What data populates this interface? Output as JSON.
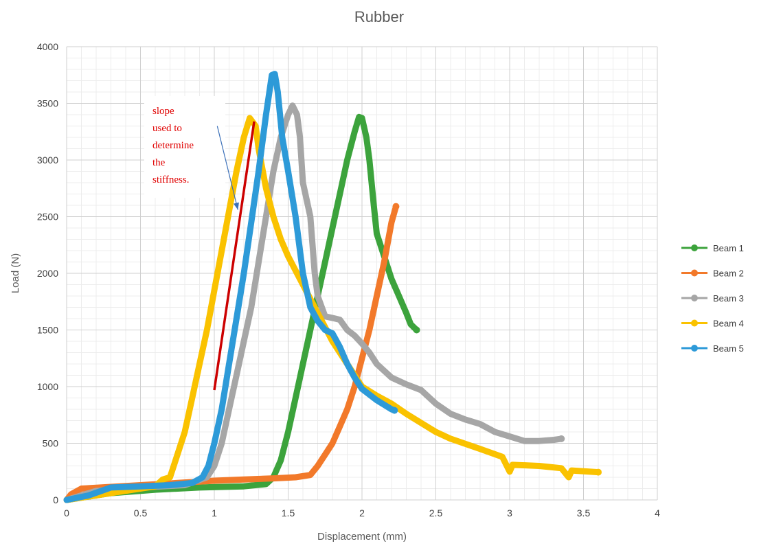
{
  "chart_data": {
    "type": "line",
    "title": "Rubber",
    "xlabel": "Displacement (mm)",
    "ylabel": "Load (N)",
    "xlim": [
      0,
      4
    ],
    "ylim": [
      0,
      4000
    ],
    "x_ticks": [
      "0",
      "0.5",
      "1",
      "1.5",
      "2",
      "2.5",
      "3",
      "3.5",
      "4"
    ],
    "y_ticks": [
      "0",
      "500",
      "1000",
      "1500",
      "2000",
      "2500",
      "3000",
      "3500",
      "4000"
    ],
    "grid": true,
    "minor_grid": true,
    "legend_position": "right",
    "series": [
      {
        "name": "Beam 1",
        "color": "#3ca33c",
        "points": [
          [
            0,
            0
          ],
          [
            0.3,
            60
          ],
          [
            0.6,
            90
          ],
          [
            0.9,
            110
          ],
          [
            1.2,
            120
          ],
          [
            1.35,
            140
          ],
          [
            1.4,
            200
          ],
          [
            1.45,
            350
          ],
          [
            1.5,
            600
          ],
          [
            1.55,
            900
          ],
          [
            1.6,
            1200
          ],
          [
            1.65,
            1500
          ],
          [
            1.7,
            1800
          ],
          [
            1.75,
            2100
          ],
          [
            1.8,
            2400
          ],
          [
            1.85,
            2700
          ],
          [
            1.9,
            3000
          ],
          [
            1.95,
            3250
          ],
          [
            1.98,
            3380
          ],
          [
            2.0,
            3370
          ],
          [
            2.03,
            3200
          ],
          [
            2.05,
            3000
          ],
          [
            2.08,
            2600
          ],
          [
            2.1,
            2350
          ],
          [
            2.15,
            2150
          ],
          [
            2.2,
            1950
          ],
          [
            2.25,
            1800
          ],
          [
            2.3,
            1650
          ],
          [
            2.33,
            1550
          ],
          [
            2.37,
            1500
          ]
        ]
      },
      {
        "name": "Beam 2",
        "color": "#f2792a",
        "points": [
          [
            0,
            0
          ],
          [
            0.03,
            50
          ],
          [
            0.1,
            100
          ],
          [
            0.5,
            130
          ],
          [
            1.0,
            170
          ],
          [
            1.2,
            180
          ],
          [
            1.4,
            190
          ],
          [
            1.55,
            200
          ],
          [
            1.65,
            220
          ],
          [
            1.7,
            300
          ],
          [
            1.75,
            400
          ],
          [
            1.8,
            500
          ],
          [
            1.85,
            650
          ],
          [
            1.9,
            800
          ],
          [
            1.95,
            1000
          ],
          [
            2.0,
            1250
          ],
          [
            2.05,
            1500
          ],
          [
            2.1,
            1800
          ],
          [
            2.15,
            2100
          ],
          [
            2.2,
            2450
          ],
          [
            2.23,
            2590
          ]
        ]
      },
      {
        "name": "Beam 3",
        "color": "#a6a6a6",
        "points": [
          [
            0,
            0
          ],
          [
            0.2,
            80
          ],
          [
            0.5,
            110
          ],
          [
            0.8,
            130
          ],
          [
            0.95,
            200
          ],
          [
            1.0,
            300
          ],
          [
            1.05,
            500
          ],
          [
            1.1,
            800
          ],
          [
            1.15,
            1100
          ],
          [
            1.2,
            1400
          ],
          [
            1.25,
            1700
          ],
          [
            1.3,
            2100
          ],
          [
            1.35,
            2500
          ],
          [
            1.4,
            2900
          ],
          [
            1.45,
            3200
          ],
          [
            1.5,
            3400
          ],
          [
            1.53,
            3480
          ],
          [
            1.56,
            3400
          ],
          [
            1.58,
            3200
          ],
          [
            1.6,
            2800
          ],
          [
            1.65,
            2500
          ],
          [
            1.68,
            2000
          ],
          [
            1.7,
            1800
          ],
          [
            1.75,
            1620
          ],
          [
            1.82,
            1600
          ],
          [
            1.85,
            1590
          ],
          [
            1.9,
            1500
          ],
          [
            1.95,
            1450
          ],
          [
            2.0,
            1380
          ],
          [
            2.05,
            1300
          ],
          [
            2.1,
            1200
          ],
          [
            2.2,
            1080
          ],
          [
            2.3,
            1020
          ],
          [
            2.4,
            970
          ],
          [
            2.5,
            850
          ],
          [
            2.6,
            760
          ],
          [
            2.7,
            710
          ],
          [
            2.8,
            670
          ],
          [
            2.9,
            600
          ],
          [
            3.0,
            560
          ],
          [
            3.1,
            520
          ],
          [
            3.2,
            520
          ],
          [
            3.3,
            530
          ],
          [
            3.35,
            540
          ]
        ]
      },
      {
        "name": "Beam 4",
        "color": "#fac200",
        "points": [
          [
            0,
            0
          ],
          [
            0.3,
            60
          ],
          [
            0.6,
            120
          ],
          [
            0.65,
            180
          ],
          [
            0.7,
            200
          ],
          [
            0.75,
            400
          ],
          [
            0.8,
            600
          ],
          [
            0.85,
            900
          ],
          [
            0.9,
            1200
          ],
          [
            0.95,
            1500
          ],
          [
            1.0,
            1850
          ],
          [
            1.05,
            2200
          ],
          [
            1.1,
            2550
          ],
          [
            1.15,
            2900
          ],
          [
            1.2,
            3200
          ],
          [
            1.24,
            3370
          ],
          [
            1.28,
            3300
          ],
          [
            1.3,
            3100
          ],
          [
            1.35,
            2750
          ],
          [
            1.4,
            2500
          ],
          [
            1.45,
            2300
          ],
          [
            1.5,
            2150
          ],
          [
            1.6,
            1900
          ],
          [
            1.7,
            1650
          ],
          [
            1.8,
            1400
          ],
          [
            1.9,
            1200
          ],
          [
            2.0,
            1000
          ],
          [
            2.1,
            920
          ],
          [
            2.2,
            850
          ],
          [
            2.3,
            760
          ],
          [
            2.4,
            680
          ],
          [
            2.5,
            600
          ],
          [
            2.6,
            540
          ],
          [
            2.8,
            450
          ],
          [
            2.95,
            380
          ],
          [
            3.0,
            250
          ],
          [
            3.02,
            310
          ],
          [
            3.2,
            300
          ],
          [
            3.35,
            280
          ],
          [
            3.4,
            200
          ],
          [
            3.42,
            260
          ],
          [
            3.6,
            245
          ]
        ]
      },
      {
        "name": "Beam 5",
        "color": "#2d9ad8",
        "points": [
          [
            0,
            0
          ],
          [
            0.15,
            40
          ],
          [
            0.3,
            110
          ],
          [
            0.5,
            120
          ],
          [
            0.7,
            130
          ],
          [
            0.85,
            150
          ],
          [
            0.92,
            200
          ],
          [
            0.96,
            300
          ],
          [
            1.0,
            500
          ],
          [
            1.05,
            800
          ],
          [
            1.1,
            1200
          ],
          [
            1.15,
            1600
          ],
          [
            1.2,
            2000
          ],
          [
            1.25,
            2450
          ],
          [
            1.3,
            2900
          ],
          [
            1.35,
            3400
          ],
          [
            1.39,
            3750
          ],
          [
            1.41,
            3760
          ],
          [
            1.43,
            3600
          ],
          [
            1.46,
            3200
          ],
          [
            1.5,
            2900
          ],
          [
            1.55,
            2500
          ],
          [
            1.6,
            2000
          ],
          [
            1.65,
            1700
          ],
          [
            1.7,
            1580
          ],
          [
            1.75,
            1500
          ],
          [
            1.8,
            1470
          ],
          [
            1.85,
            1350
          ],
          [
            1.9,
            1200
          ],
          [
            1.95,
            1080
          ],
          [
            2.0,
            980
          ],
          [
            2.1,
            880
          ],
          [
            2.2,
            800
          ],
          [
            2.22,
            790
          ]
        ]
      }
    ],
    "annotations": {
      "text_lines": [
        "slope",
        "used to",
        "determine",
        "the",
        "stiffness."
      ],
      "color": "#e00000",
      "slope_line": {
        "from": [
          1.0,
          970
        ],
        "to": [
          1.27,
          3340
        ],
        "color": "#cc0000"
      },
      "arrow": {
        "from": [
          1.02,
          3300
        ],
        "to": [
          1.16,
          2560
        ],
        "color": "#3a6fb8"
      }
    }
  }
}
